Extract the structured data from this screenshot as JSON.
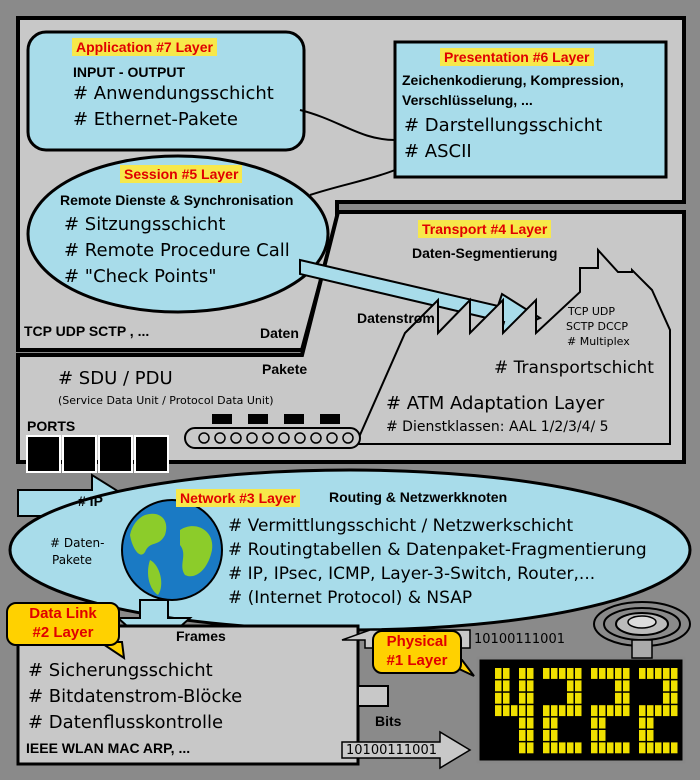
{
  "application": {
    "tag": "Application #7 Layer",
    "heading": "INPUT - OUTPUT",
    "items": [
      "# Anwendungsschicht",
      "# Ethernet-Pakete"
    ]
  },
  "presentation": {
    "tag": "Presentation #6 Layer",
    "heading_1": "Zeichenkodierung, Kompression,",
    "heading_2": "Verschlüsselung, ...",
    "items": [
      "# Darstellungsschicht",
      "# ASCII"
    ]
  },
  "session": {
    "tag": "Session #5 Layer",
    "heading": "Remote Dienste & Synchronisation",
    "items": [
      "# Sitzungsschicht",
      "# Remote Procedure Call",
      "# \"Check Points\""
    ]
  },
  "transport": {
    "tag": "Transport #4 Layer",
    "heading": "Daten-Segmentierung",
    "factory_protocols": [
      "TCP UDP",
      "SCTP DCCP",
      "# Multiplex"
    ],
    "datenstrom": "Datenstrom",
    "protocols_left": "TCP UDP SCTP , ...",
    "daten": "Daten",
    "pakete": "Pakete",
    "sdu": "# SDU / PDU",
    "sdu_desc": "(Service Data Unit / Protocol Data Unit)",
    "transportschicht": "# Transportschicht",
    "atm": "# ATM Adaptation Layer",
    "dienstklassen": "# Dienstklassen: AAL 1/2/3/4/ 5",
    "ports": "PORTS",
    "ip": "# IP"
  },
  "network": {
    "tag": "Network #3 Layer",
    "heading": "Routing & Netzwerkknoten",
    "side_1": "# Daten-",
    "side_2": "Pakete",
    "items": [
      "# Vermittlungsschicht / Netzwerkschicht",
      "# Routingtabellen & Datenpaket-Fragmentierung",
      "# IP, IPsec, ICMP, Layer-3-Switch, Router,...",
      "# (Internet Protocol) & NSAP"
    ]
  },
  "datalink": {
    "tag_1": "Data Link",
    "tag_2": "#2 Layer",
    "frames": "Frames",
    "items": [
      "# Sicherungsschicht",
      "# Bitdatenstrom-Blöcke",
      "# Datenflusskontrolle"
    ],
    "protocols": "IEEE WLAN MAC ARP, ...",
    "bits": "Bits"
  },
  "physical": {
    "tag_1": "Physical",
    "tag_2": "#1 Layer",
    "bits_top": "10100111001",
    "bits_bottom": "10100111001"
  },
  "colors": {
    "background": "#8a8a8a",
    "panel_gray": "#c8c8c8",
    "panel_blue": "#a8dcea",
    "tag_yellow": "#f7e84a",
    "tag_red": "#e00000",
    "display_yellow": "#f0e000"
  }
}
